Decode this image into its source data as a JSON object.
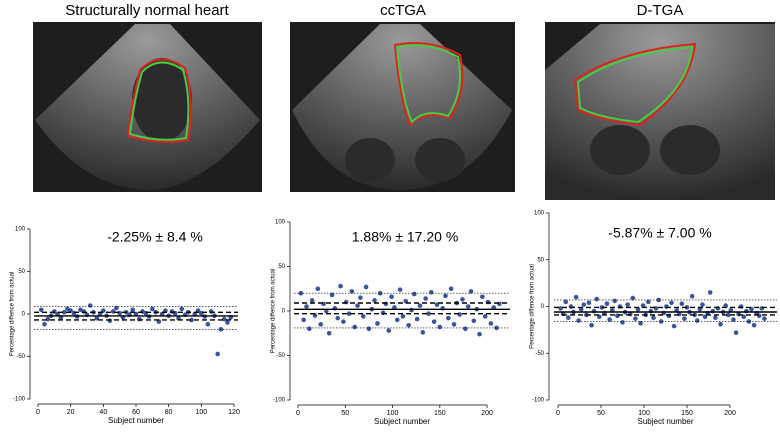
{
  "chart_data": [
    {
      "type": "scatter",
      "title": "Structurally normal heart",
      "annotation": "-2.25% ± 8.4 %",
      "xlabel": "Subject number",
      "ylabel": "Percentage diffence from actual",
      "xlim": [
        0,
        120
      ],
      "ylim": [
        -100,
        100
      ],
      "xticks": [
        0,
        20,
        40,
        60,
        80,
        100,
        120
      ],
      "yticks": [
        -100,
        -50,
        0,
        50,
        100
      ],
      "x": [
        2,
        4,
        6,
        8,
        10,
        12,
        14,
        16,
        18,
        20,
        22,
        24,
        26,
        28,
        30,
        32,
        34,
        36,
        38,
        40,
        42,
        44,
        46,
        48,
        50,
        52,
        54,
        56,
        58,
        60,
        62,
        64,
        66,
        68,
        70,
        72,
        74,
        76,
        78,
        80,
        82,
        84,
        86,
        88,
        90,
        92,
        94,
        96,
        98,
        100,
        102,
        104,
        106,
        108,
        110,
        112,
        114,
        116,
        118
      ],
      "series": [
        {
          "color": "#3a559f",
          "values": [
            5,
            -12,
            -6,
            -2,
            3,
            0,
            -4,
            2,
            6,
            4,
            1,
            -3,
            5,
            3,
            -1,
            10,
            2,
            -5,
            0,
            4,
            -2,
            -8,
            3,
            7,
            1,
            -4,
            2,
            -1,
            5,
            0,
            -6,
            3,
            1,
            -3,
            6,
            2,
            -9,
            0,
            4,
            -2,
            3,
            1,
            -5,
            6,
            -1,
            2,
            -7,
            0,
            4,
            1,
            -3,
            -12,
            3,
            -2,
            -47,
            -18,
            -6,
            -10,
            -4
          ]
        }
      ],
      "reference_lines": [
        {
          "value": -2.25,
          "style": "solid"
        },
        {
          "value": 2,
          "style": "dashed"
        },
        {
          "value": -7,
          "style": "dashed"
        },
        {
          "value": 9,
          "style": "dotted"
        },
        {
          "value": -18,
          "style": "dotted"
        }
      ]
    },
    {
      "type": "scatter",
      "title": "ccTGA",
      "annotation": "1.88% ± 17.20 %",
      "xlabel": "Subject number",
      "ylabel": "Percentage diffence from actual",
      "xlim": [
        0,
        220
      ],
      "ylim": [
        -100,
        100
      ],
      "xticks": [
        0,
        50,
        100,
        150,
        200
      ],
      "yticks": [
        -100,
        -50,
        0,
        50,
        100
      ],
      "x": [
        3,
        6,
        9,
        12,
        15,
        18,
        21,
        24,
        27,
        30,
        33,
        36,
        39,
        42,
        45,
        48,
        51,
        54,
        57,
        60,
        63,
        66,
        69,
        72,
        75,
        78,
        81,
        84,
        87,
        90,
        93,
        96,
        99,
        102,
        105,
        108,
        111,
        114,
        117,
        120,
        123,
        126,
        129,
        132,
        135,
        138,
        141,
        144,
        147,
        150,
        153,
        156,
        159,
        162,
        165,
        168,
        171,
        174,
        177,
        180,
        183,
        186,
        189,
        192,
        195,
        198,
        201,
        204,
        207,
        210,
        213
      ],
      "series": [
        {
          "color": "#3a559f",
          "values": [
            20,
            -10,
            5,
            -20,
            12,
            -5,
            25,
            -15,
            8,
            0,
            -25,
            18,
            3,
            -8,
            28,
            -12,
            10,
            -3,
            22,
            -18,
            6,
            15,
            -6,
            27,
            -20,
            2,
            12,
            -14,
            20,
            -2,
            8,
            -22,
            16,
            4,
            -10,
            24,
            -6,
            11,
            -16,
            1,
            19,
            -9,
            6,
            -24,
            14,
            -3,
            21,
            -12,
            7,
            -18,
            3,
            17,
            -8,
            25,
            -15,
            9,
            -4,
            13,
            -20,
            5,
            22,
            -11,
            2,
            -26,
            16,
            -6,
            10,
            -14,
            4,
            -19,
            8
          ]
        }
      ],
      "reference_lines": [
        {
          "value": 1.88,
          "style": "solid"
        },
        {
          "value": 9,
          "style": "dashed"
        },
        {
          "value": -3,
          "style": "dashed"
        },
        {
          "value": 20,
          "style": "dotted"
        },
        {
          "value": -19,
          "style": "dotted"
        }
      ]
    },
    {
      "type": "scatter",
      "title": "D-TGA",
      "annotation": "-5.87% ± 7.00 %",
      "xlabel": "Subject number",
      "ylabel": "Percentage diffence from actual",
      "xlim": [
        0,
        250
      ],
      "ylim": [
        -100,
        100
      ],
      "xticks": [
        0,
        50,
        100,
        150,
        200
      ],
      "yticks": [
        -100,
        -50,
        0,
        50,
        100
      ],
      "x": [
        3,
        6,
        9,
        12,
        15,
        18,
        21,
        24,
        27,
        30,
        33,
        36,
        39,
        42,
        45,
        48,
        51,
        54,
        57,
        60,
        63,
        66,
        69,
        72,
        75,
        78,
        81,
        84,
        87,
        90,
        93,
        96,
        99,
        102,
        105,
        108,
        111,
        114,
        117,
        120,
        123,
        126,
        129,
        132,
        135,
        138,
        141,
        144,
        147,
        150,
        153,
        156,
        159,
        162,
        165,
        168,
        171,
        174,
        177,
        180,
        183,
        186,
        189,
        192,
        195,
        198,
        201,
        204,
        207,
        210,
        213,
        216,
        219,
        222,
        225,
        228,
        231,
        234,
        237,
        240
      ],
      "series": [
        {
          "color": "#3a559f",
          "values": [
            -2,
            -8,
            5,
            -12,
            0,
            -6,
            10,
            -15,
            -3,
            2,
            -9,
            4,
            -20,
            -5,
            8,
            -11,
            -1,
            -7,
            3,
            -14,
            -4,
            6,
            -10,
            0,
            -17,
            -6,
            2,
            -8,
            9,
            -13,
            -3,
            -18,
            1,
            -9,
            5,
            -5,
            -12,
            -2,
            7,
            -16,
            -7,
            0,
            -10,
            4,
            -21,
            -4,
            -8,
            3,
            -13,
            -1,
            -6,
            11,
            -9,
            -15,
            -3,
            2,
            -11,
            -7,
            15,
            -5,
            -12,
            -2,
            -19,
            -6,
            1,
            -9,
            -4,
            -14,
            -28,
            -8,
            0,
            -11,
            -5,
            -16,
            -3,
            -20,
            -7,
            -10,
            -2,
            -13
          ]
        }
      ],
      "reference_lines": [
        {
          "value": -5.87,
          "style": "solid"
        },
        {
          "value": -1,
          "style": "dashed"
        },
        {
          "value": -9,
          "style": "dashed"
        },
        {
          "value": 7,
          "style": "dotted"
        },
        {
          "value": -16,
          "style": "dotted"
        }
      ]
    }
  ]
}
